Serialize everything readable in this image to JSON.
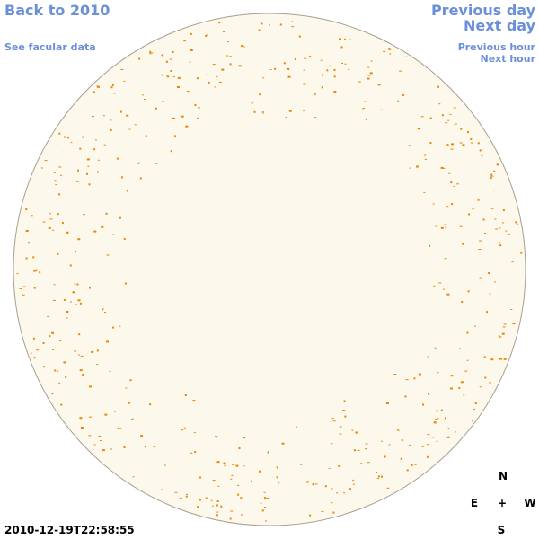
{
  "links": {
    "back": "Back to 2010",
    "facular": "See facular data",
    "previous_day": "Previous day",
    "next_day": "Next day",
    "previous_hour": "Previous hour",
    "next_hour": "Next hour"
  },
  "timestamp": "2010-12-19T22:58:55",
  "compass": {
    "north": "N",
    "east": "E",
    "center": "+",
    "west": "W",
    "south": "S"
  }
}
